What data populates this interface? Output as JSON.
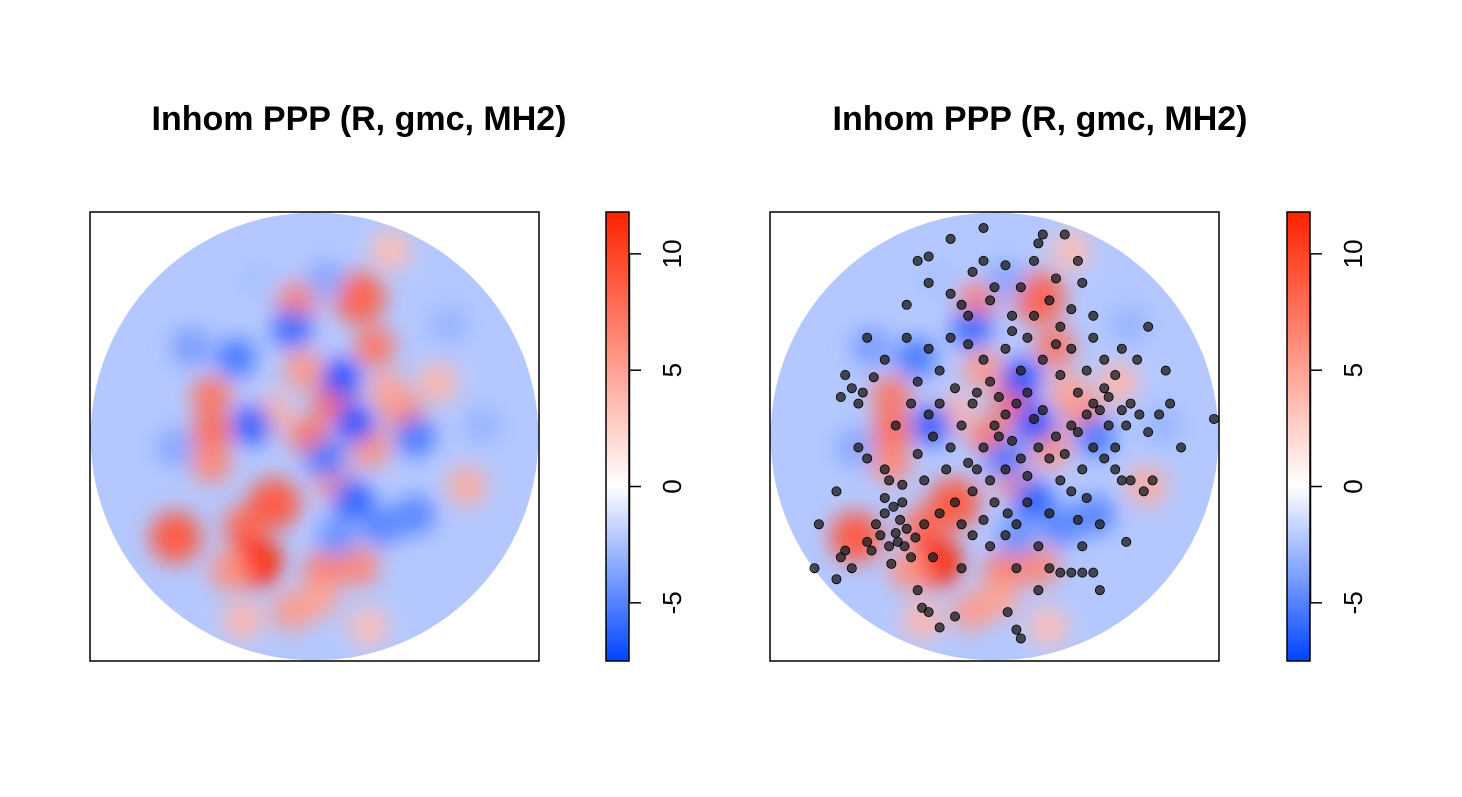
{
  "charts": [
    {
      "title": "Inhom PPP (R, gmc, MH2)"
    },
    {
      "title": "Inhom PPP (R, gmc, MH2)"
    }
  ],
  "chart_data": [
    {
      "type": "heatmap",
      "title": "Inhom PPP (R, gmc, MH2)",
      "domain": "disc",
      "colorbar": {
        "range": [
          -7.5,
          11.8
        ],
        "ticks": [
          -5,
          0,
          5,
          10
        ],
        "tick_labels": [
          "-5",
          "0",
          "5",
          "10"
        ],
        "colors": [
          "#0044ff",
          "#ffffff",
          "#ff2200"
        ]
      },
      "blobs": [
        {
          "x": -0.08,
          "y": 0.6,
          "v": 7.0
        },
        {
          "x": 0.2,
          "y": 0.62,
          "v": 8.5
        },
        {
          "x": 0.27,
          "y": 0.4,
          "v": 7.5
        },
        {
          "x": 0.34,
          "y": 0.83,
          "v": 3.5
        },
        {
          "x": -0.46,
          "y": 0.02,
          "v": 8.0
        },
        {
          "x": -0.46,
          "y": 0.18,
          "v": 7.5
        },
        {
          "x": -0.05,
          "y": 0.3,
          "v": 5.5
        },
        {
          "x": 0.08,
          "y": 0.16,
          "v": 8.0
        },
        {
          "x": -0.02,
          "y": 0.0,
          "v": 7.5
        },
        {
          "x": 0.25,
          "y": -0.05,
          "v": 6.0
        },
        {
          "x": 0.4,
          "y": 0.1,
          "v": 6.5
        },
        {
          "x": -0.62,
          "y": -0.45,
          "v": 9.0
        },
        {
          "x": -0.46,
          "y": -0.12,
          "v": 6.5
        },
        {
          "x": -0.32,
          "y": -0.4,
          "v": 8.0
        },
        {
          "x": -0.26,
          "y": -0.56,
          "v": 11.5
        },
        {
          "x": -0.18,
          "y": -0.3,
          "v": 9.0
        },
        {
          "x": -0.38,
          "y": -0.6,
          "v": 6.0
        },
        {
          "x": 0.04,
          "y": -0.6,
          "v": 7.0
        },
        {
          "x": 0.2,
          "y": -0.58,
          "v": 6.5
        },
        {
          "x": -0.1,
          "y": -0.78,
          "v": 5.5
        },
        {
          "x": 0.02,
          "y": -0.72,
          "v": 5.0
        },
        {
          "x": 0.08,
          "y": -0.2,
          "v": 5.5
        },
        {
          "x": 0.68,
          "y": -0.22,
          "v": 4.5
        },
        {
          "x": -0.32,
          "y": -0.82,
          "v": 4.0
        },
        {
          "x": 0.55,
          "y": 0.24,
          "v": 4.0
        },
        {
          "x": 0.24,
          "y": -0.85,
          "v": 3.5
        },
        {
          "x": 0.33,
          "y": 0.2,
          "v": 5.0
        },
        {
          "x": -0.18,
          "y": 0.1,
          "v": 4.0
        },
        {
          "x": -0.35,
          "y": 0.35,
          "v": -5.5
        },
        {
          "x": -0.1,
          "y": 0.48,
          "v": -6.0
        },
        {
          "x": 0.12,
          "y": 0.26,
          "v": -7.0
        },
        {
          "x": 0.18,
          "y": 0.06,
          "v": -7.0
        },
        {
          "x": -0.28,
          "y": 0.05,
          "v": -6.5
        },
        {
          "x": 0.05,
          "y": -0.1,
          "v": -5.5
        },
        {
          "x": 0.17,
          "y": -0.28,
          "v": -6.5
        },
        {
          "x": 0.3,
          "y": -0.4,
          "v": -5.0
        },
        {
          "x": -0.55,
          "y": 0.4,
          "v": -4.0
        },
        {
          "x": 0.45,
          "y": -0.35,
          "v": -5.0
        },
        {
          "x": 0.6,
          "y": 0.5,
          "v": -3.0
        },
        {
          "x": -0.62,
          "y": -0.05,
          "v": -3.5
        },
        {
          "x": 0.45,
          "y": 0.0,
          "v": -5.5
        },
        {
          "x": 0.05,
          "y": 0.7,
          "v": -3.5
        },
        {
          "x": 0.75,
          "y": 0.05,
          "v": -3.0
        },
        {
          "x": -0.25,
          "y": 0.7,
          "v": -2.5
        },
        {
          "x": 0.1,
          "y": -0.45,
          "v": -4.5
        }
      ]
    },
    {
      "type": "scatter",
      "title": "Inhom PPP (R, gmc, MH2)",
      "domain": "disc",
      "colorbar": {
        "range": [
          -7.5,
          11.8
        ],
        "ticks": [
          -5,
          0,
          5,
          10
        ],
        "tick_labels": [
          "-5",
          "0",
          "5",
          "10"
        ],
        "colors": [
          "#0044ff",
          "#ffffff",
          "#ff2200"
        ]
      },
      "points": [
        [
          -0.5,
          -0.35
        ],
        [
          -0.46,
          -0.32
        ],
        [
          -0.42,
          -0.3
        ],
        [
          -0.52,
          -0.45
        ],
        [
          -0.48,
          -0.5
        ],
        [
          -0.44,
          -0.48
        ],
        [
          -0.4,
          -0.42
        ],
        [
          -0.54,
          -0.4
        ],
        [
          -0.38,
          -0.55
        ],
        [
          -0.56,
          -0.52
        ],
        [
          -0.47,
          -0.58
        ],
        [
          -0.43,
          -0.38
        ],
        [
          -0.36,
          -0.46
        ],
        [
          -0.5,
          -0.28
        ],
        [
          -0.58,
          -0.48
        ],
        [
          -0.45,
          -0.44
        ],
        [
          -0.41,
          -0.5
        ],
        [
          -0.65,
          -0.6
        ],
        [
          -0.7,
          -0.55
        ],
        [
          -0.72,
          -0.65
        ],
        [
          -0.68,
          -0.52
        ],
        [
          -0.35,
          -0.7
        ],
        [
          -0.3,
          -0.8
        ],
        [
          -0.25,
          -0.87
        ],
        [
          -0.18,
          -0.82
        ],
        [
          -0.33,
          -0.78
        ],
        [
          -0.65,
          0.22
        ],
        [
          -0.7,
          0.18
        ],
        [
          -0.6,
          0.2
        ],
        [
          -0.68,
          0.28
        ],
        [
          -0.55,
          0.27
        ],
        [
          -0.62,
          0.15
        ],
        [
          -0.5,
          0.35
        ],
        [
          -0.58,
          0.45
        ],
        [
          -0.62,
          -0.05
        ],
        [
          -0.58,
          -0.1
        ],
        [
          -0.5,
          -0.15
        ],
        [
          -0.45,
          0.05
        ],
        [
          -0.35,
          0.25
        ],
        [
          -0.3,
          0.1
        ],
        [
          -0.25,
          0.3
        ],
        [
          -0.2,
          0.45
        ],
        [
          -0.15,
          0.6
        ],
        [
          -0.1,
          0.75
        ],
        [
          -0.05,
          0.8
        ],
        [
          0.05,
          0.78
        ],
        [
          0.12,
          0.68
        ],
        [
          0.18,
          0.8
        ],
        [
          0.25,
          0.62
        ],
        [
          0.3,
          0.5
        ],
        [
          0.08,
          0.55
        ],
        [
          0.15,
          0.45
        ],
        [
          0.05,
          0.4
        ],
        [
          -0.05,
          0.35
        ],
        [
          0.22,
          0.35
        ],
        [
          0.3,
          0.28
        ],
        [
          0.38,
          0.2
        ],
        [
          0.45,
          0.15
        ],
        [
          0.52,
          0.18
        ],
        [
          0.58,
          0.12
        ],
        [
          0.62,
          0.15
        ],
        [
          0.66,
          0.1
        ],
        [
          0.6,
          0.05
        ],
        [
          0.55,
          0.28
        ],
        [
          0.5,
          0.22
        ],
        [
          0.42,
          0.1
        ],
        [
          0.35,
          0.05
        ],
        [
          0.28,
          0.0
        ],
        [
          0.2,
          -0.05
        ],
        [
          0.12,
          -0.1
        ],
        [
          0.05,
          -0.15
        ],
        [
          -0.02,
          -0.2
        ],
        [
          -0.1,
          -0.25
        ],
        [
          -0.18,
          -0.3
        ],
        [
          -0.25,
          -0.35
        ],
        [
          -0.32,
          -0.4
        ],
        [
          -0.05,
          -0.05
        ],
        [
          0.0,
          0.05
        ],
        [
          0.05,
          0.1
        ],
        [
          0.1,
          0.15
        ],
        [
          0.15,
          0.2
        ],
        [
          -0.1,
          0.15
        ],
        [
          -0.15,
          0.05
        ],
        [
          -0.2,
          -0.05
        ],
        [
          0.25,
          -0.1
        ],
        [
          0.3,
          -0.2
        ],
        [
          0.35,
          -0.25
        ],
        [
          0.4,
          -0.15
        ],
        [
          0.45,
          -0.05
        ],
        [
          0.5,
          -0.1
        ],
        [
          0.15,
          -0.3
        ],
        [
          0.1,
          -0.4
        ],
        [
          0.05,
          -0.45
        ],
        [
          -0.02,
          -0.5
        ],
        [
          -0.1,
          -0.45
        ],
        [
          -0.15,
          -0.4
        ],
        [
          0.2,
          -0.5
        ],
        [
          0.25,
          -0.6
        ],
        [
          0.3,
          -0.62
        ],
        [
          0.35,
          -0.62
        ],
        [
          0.4,
          -0.62
        ],
        [
          0.45,
          -0.62
        ],
        [
          0.48,
          -0.7
        ],
        [
          0.6,
          -0.48
        ],
        [
          0.06,
          -0.8
        ],
        [
          0.1,
          -0.88
        ],
        [
          0.12,
          -0.92
        ],
        [
          -0.4,
          0.6
        ],
        [
          -0.3,
          0.7
        ],
        [
          -0.2,
          0.65
        ],
        [
          -0.35,
          0.8
        ],
        [
          -0.3,
          0.82
        ],
        [
          0.2,
          0.88
        ],
        [
          0.22,
          0.92
        ],
        [
          0.4,
          0.7
        ],
        [
          0.45,
          0.55
        ],
        [
          0.35,
          0.4
        ],
        [
          -0.08,
          0.2
        ],
        [
          -0.02,
          0.25
        ],
        [
          0.02,
          0.0
        ],
        [
          0.08,
          -0.02
        ],
        [
          -0.12,
          -0.12
        ],
        [
          0.18,
          0.08
        ],
        [
          0.22,
          0.12
        ],
        [
          -0.25,
          0.15
        ],
        [
          -0.28,
          0.0
        ],
        [
          -0.32,
          -0.2
        ],
        [
          0.0,
          -0.3
        ],
        [
          0.06,
          -0.35
        ],
        [
          -0.05,
          -0.38
        ],
        [
          0.38,
          -0.38
        ],
        [
          0.42,
          -0.28
        ],
        [
          0.48,
          -0.4
        ],
        [
          0.55,
          -0.15
        ],
        [
          0.62,
          -0.2
        ],
        [
          0.68,
          -0.25
        ],
        [
          0.72,
          -0.2
        ],
        [
          0.7,
          0.02
        ],
        [
          0.75,
          0.1
        ],
        [
          0.8,
          0.15
        ],
        [
          0.85,
          -0.05
        ],
        [
          0.65,
          0.35
        ],
        [
          0.7,
          0.5
        ],
        [
          0.78,
          0.3
        ],
        [
          -0.72,
          -0.25
        ],
        [
          -0.8,
          -0.4
        ],
        [
          -0.82,
          -0.6
        ],
        [
          -0.05,
          0.95
        ],
        [
          -0.2,
          0.9
        ],
        [
          0.32,
          0.92
        ],
        [
          0.58,
          -0.2
        ],
        [
          0.55,
          -0.05
        ],
        [
          -0.38,
          0.15
        ],
        [
          -0.42,
          -0.22
        ],
        [
          -0.12,
          0.42
        ],
        [
          0.18,
          0.55
        ],
        [
          0.28,
          0.42
        ],
        [
          0.42,
          0.3
        ],
        [
          -0.22,
          -0.15
        ],
        [
          -0.18,
          0.22
        ],
        [
          0.12,
          0.3
        ],
        [
          0.08,
          0.48
        ],
        [
          -0.02,
          0.62
        ],
        [
          0.28,
          0.72
        ],
        [
          0.35,
          0.58
        ],
        [
          0.5,
          0.35
        ],
        [
          0.02,
          0.18
        ],
        [
          0.15,
          -0.18
        ],
        [
          -0.08,
          -0.15
        ],
        [
          0.32,
          -0.08
        ],
        [
          0.38,
          0.02
        ],
        [
          -0.35,
          -0.08
        ],
        [
          0.45,
          0.45
        ],
        [
          0.4,
          -0.5
        ],
        [
          0.25,
          -0.35
        ],
        [
          0.52,
          0.05
        ],
        [
          0.48,
          0.12
        ],
        [
          -0.48,
          -0.2
        ],
        [
          -0.3,
          0.4
        ],
        [
          -0.4,
          0.45
        ],
        [
          0.1,
          -0.6
        ],
        [
          0.2,
          -0.7
        ],
        [
          1.0,
          0.08
        ],
        [
          0.58,
          0.4
        ],
        [
          -0.15,
          -0.6
        ],
        [
          -0.28,
          -0.55
        ],
        [
          0.0,
          0.68
        ],
        [
          -0.12,
          0.55
        ],
        [
          0.38,
          0.8
        ]
      ]
    }
  ]
}
